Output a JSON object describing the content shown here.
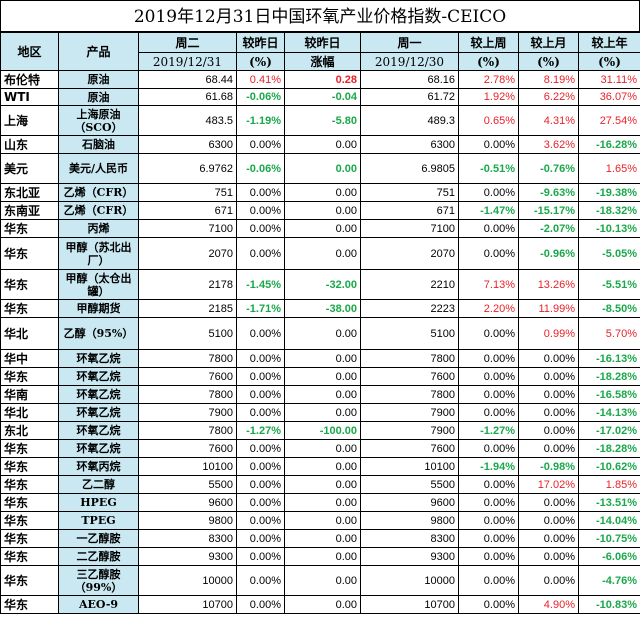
{
  "title": "2019年12月31日中国环氧产业价格指数-CEICO",
  "header": {
    "region": "地区",
    "product": "产品",
    "tue": "周二",
    "tue_date": "2019/12/31",
    "vs_prev_day": "较昨日",
    "vs_prev_day_unit": "(%)",
    "vs_prev_day2": "较昨日",
    "vs_prev_day2_sub": "涨幅",
    "mon": "周一",
    "mon_date": "2019/12/30",
    "vs_week": "较上周",
    "vs_week_unit": "(%)",
    "vs_month": "较上月",
    "vs_month_unit": "(%)",
    "vs_year": "较上年",
    "vs_year_unit": "(%)"
  },
  "rows": [
    {
      "region": "布伦特",
      "product": "原油",
      "tue": "68.44",
      "dpct": "0.41%",
      "dpct_c": "red",
      "dabs": "0.28",
      "dabs_c": "boldred",
      "mon": "68.16",
      "wk": "2.78%",
      "wk_c": "red",
      "mo": "8.19%",
      "mo_c": "red",
      "yr": "31.11%",
      "yr_c": "red",
      "h": 17
    },
    {
      "region": "WTI",
      "product": "原油",
      "tue": "61.68",
      "dpct": "-0.06%",
      "dpct_c": "green",
      "dabs": "-0.04",
      "dabs_c": "green",
      "mon": "61.72",
      "wk": "1.92%",
      "wk_c": "red",
      "mo": "6.22%",
      "mo_c": "red",
      "yr": "36.07%",
      "yr_c": "red",
      "h": 17
    },
    {
      "region": "上海",
      "product": "上海原油（SCO）",
      "tue": "483.5",
      "dpct": "-1.19%",
      "dpct_c": "green",
      "dabs": "-5.80",
      "dabs_c": "green",
      "mon": "489.3",
      "wk": "0.65%",
      "wk_c": "red",
      "mo": "4.31%",
      "mo_c": "red",
      "yr": "27.54%",
      "yr_c": "red",
      "h": 30
    },
    {
      "region": "山东",
      "product": "石脑油",
      "tue": "6300",
      "dpct": "0.00%",
      "dpct_c": "black",
      "dabs": "0.00",
      "dabs_c": "black",
      "mon": "6300",
      "wk": "0.00%",
      "wk_c": "black",
      "mo": "3.62%",
      "mo_c": "red",
      "yr": "-16.28%",
      "yr_c": "green",
      "h": 17
    },
    {
      "region": "美元",
      "product": "美元/人民币",
      "tue": "6.9762",
      "dpct": "-0.06%",
      "dpct_c": "green",
      "dabs": "0.00",
      "dabs_c": "green",
      "mon": "6.9805",
      "wk": "-0.51%",
      "wk_c": "green",
      "mo": "-0.76%",
      "mo_c": "green",
      "yr": "1.65%",
      "yr_c": "red",
      "h": 30
    },
    {
      "region": "东北亚",
      "product": "乙烯（CFR）",
      "tue": "751",
      "dpct": "0.00%",
      "dpct_c": "black",
      "dabs": "0.00",
      "dabs_c": "black",
      "mon": "751",
      "wk": "0.00%",
      "wk_c": "black",
      "mo": "-9.63%",
      "mo_c": "green",
      "yr": "-19.38%",
      "yr_c": "green",
      "h": 17
    },
    {
      "region": "东南亚",
      "product": "乙烯（CFR）",
      "tue": "671",
      "dpct": "0.00%",
      "dpct_c": "black",
      "dabs": "0.00",
      "dabs_c": "black",
      "mon": "671",
      "wk": "-1.47%",
      "wk_c": "green",
      "mo": "-15.17%",
      "mo_c": "green",
      "yr": "-18.32%",
      "yr_c": "green",
      "h": 17
    },
    {
      "region": "华东",
      "product": "丙烯",
      "tue": "7100",
      "dpct": "0.00%",
      "dpct_c": "black",
      "dabs": "0.00",
      "dabs_c": "black",
      "mon": "7100",
      "wk": "0.00%",
      "wk_c": "black",
      "mo": "-2.07%",
      "mo_c": "green",
      "yr": "-10.13%",
      "yr_c": "green",
      "h": 17
    },
    {
      "region": "华东",
      "product": "甲醇（苏北出厂）",
      "tue": "2070",
      "dpct": "0.00%",
      "dpct_c": "black",
      "dabs": "0.00",
      "dabs_c": "black",
      "mon": "2070",
      "wk": "0.00%",
      "wk_c": "black",
      "mo": "-0.96%",
      "mo_c": "green",
      "yr": "-5.05%",
      "yr_c": "green",
      "h": 32
    },
    {
      "region": "华东",
      "product": "甲醇（太仓出罐）",
      "tue": "2178",
      "dpct": "-1.45%",
      "dpct_c": "green",
      "dabs": "-32.00",
      "dabs_c": "green",
      "mon": "2210",
      "wk": "7.13%",
      "wk_c": "red",
      "mo": "13.26%",
      "mo_c": "red",
      "yr": "-5.51%",
      "yr_c": "green",
      "h": 30
    },
    {
      "region": "华东",
      "product": "甲醇期货",
      "tue": "2185",
      "dpct": "-1.71%",
      "dpct_c": "green",
      "dabs": "-38.00",
      "dabs_c": "green",
      "mon": "2223",
      "wk": "2.20%",
      "wk_c": "red",
      "mo": "11.99%",
      "mo_c": "red",
      "yr": "-8.50%",
      "yr_c": "green",
      "h": 17
    },
    {
      "region": "华北",
      "product": "乙醇（95%）",
      "tue": "5100",
      "dpct": "0.00%",
      "dpct_c": "black",
      "dabs": "0.00",
      "dabs_c": "black",
      "mon": "5100",
      "wk": "0.00%",
      "wk_c": "black",
      "mo": "0.99%",
      "mo_c": "red",
      "yr": "5.70%",
      "yr_c": "red",
      "h": 32
    },
    {
      "region": "华中",
      "product": "环氧乙烷",
      "tue": "7800",
      "dpct": "0.00%",
      "dpct_c": "black",
      "dabs": "0.00",
      "dabs_c": "black",
      "mon": "7800",
      "wk": "0.00%",
      "wk_c": "black",
      "mo": "0.00%",
      "mo_c": "black",
      "yr": "-16.13%",
      "yr_c": "green",
      "h": 17
    },
    {
      "region": "华东",
      "product": "环氧乙烷",
      "tue": "7600",
      "dpct": "0.00%",
      "dpct_c": "black",
      "dabs": "0.00",
      "dabs_c": "black",
      "mon": "7600",
      "wk": "0.00%",
      "wk_c": "black",
      "mo": "0.00%",
      "mo_c": "black",
      "yr": "-18.28%",
      "yr_c": "green",
      "h": 17
    },
    {
      "region": "华南",
      "product": "环氧乙烷",
      "tue": "7800",
      "dpct": "0.00%",
      "dpct_c": "black",
      "dabs": "0.00",
      "dabs_c": "black",
      "mon": "7800",
      "wk": "0.00%",
      "wk_c": "black",
      "mo": "0.00%",
      "mo_c": "black",
      "yr": "-16.58%",
      "yr_c": "green",
      "h": 17
    },
    {
      "region": "华北",
      "product": "环氧乙烷",
      "tue": "7900",
      "dpct": "0.00%",
      "dpct_c": "black",
      "dabs": "0.00",
      "dabs_c": "black",
      "mon": "7900",
      "wk": "0.00%",
      "wk_c": "black",
      "mo": "0.00%",
      "mo_c": "black",
      "yr": "-14.13%",
      "yr_c": "green",
      "h": 17
    },
    {
      "region": "东北",
      "product": "环氧乙烷",
      "tue": "7800",
      "dpct": "-1.27%",
      "dpct_c": "green",
      "dabs": "-100.00",
      "dabs_c": "green",
      "mon": "7900",
      "wk": "-1.27%",
      "wk_c": "green",
      "mo": "0.00%",
      "mo_c": "black",
      "yr": "-17.02%",
      "yr_c": "green",
      "h": 17
    },
    {
      "region": "华东",
      "product": "环氧乙烷",
      "tue": "7600",
      "dpct": "0.00%",
      "dpct_c": "black",
      "dabs": "0.00",
      "dabs_c": "black",
      "mon": "7600",
      "wk": "0.00%",
      "wk_c": "black",
      "mo": "0.00%",
      "mo_c": "black",
      "yr": "-18.28%",
      "yr_c": "green",
      "h": 17
    },
    {
      "region": "华东",
      "product": "环氧丙烷",
      "tue": "10100",
      "dpct": "0.00%",
      "dpct_c": "black",
      "dabs": "0.00",
      "dabs_c": "black",
      "mon": "10100",
      "wk": "-1.94%",
      "wk_c": "green",
      "mo": "-0.98%",
      "mo_c": "green",
      "yr": "-10.62%",
      "yr_c": "green",
      "h": 17
    },
    {
      "region": "华东",
      "product": "乙二醇",
      "tue": "5500",
      "dpct": "0.00%",
      "dpct_c": "black",
      "dabs": "0.00",
      "dabs_c": "black",
      "mon": "5500",
      "wk": "0.00%",
      "wk_c": "black",
      "mo": "17.02%",
      "mo_c": "red",
      "yr": "1.85%",
      "yr_c": "red",
      "h": 17
    },
    {
      "region": "华东",
      "product": "HPEG",
      "tue": "9600",
      "dpct": "0.00%",
      "dpct_c": "black",
      "dabs": "0.00",
      "dabs_c": "black",
      "mon": "9600",
      "wk": "0.00%",
      "wk_c": "black",
      "mo": "0.00%",
      "mo_c": "black",
      "yr": "-13.51%",
      "yr_c": "green",
      "h": 17
    },
    {
      "region": "华东",
      "product": "TPEG",
      "tue": "9800",
      "dpct": "0.00%",
      "dpct_c": "black",
      "dabs": "0.00",
      "dabs_c": "black",
      "mon": "9800",
      "wk": "0.00%",
      "wk_c": "black",
      "mo": "0.00%",
      "mo_c": "black",
      "yr": "-14.04%",
      "yr_c": "green",
      "h": 17
    },
    {
      "region": "华东",
      "product": "一乙醇胺",
      "tue": "8300",
      "dpct": "0.00%",
      "dpct_c": "black",
      "dabs": "0.00",
      "dabs_c": "black",
      "mon": "8300",
      "wk": "0.00%",
      "wk_c": "black",
      "mo": "0.00%",
      "mo_c": "black",
      "yr": "-10.75%",
      "yr_c": "green",
      "h": 17
    },
    {
      "region": "华东",
      "product": "二乙醇胺",
      "tue": "9300",
      "dpct": "0.00%",
      "dpct_c": "black",
      "dabs": "0.00",
      "dabs_c": "black",
      "mon": "9300",
      "wk": "0.00%",
      "wk_c": "black",
      "mo": "0.00%",
      "mo_c": "black",
      "yr": "-6.06%",
      "yr_c": "green",
      "h": 17
    },
    {
      "region": "华东",
      "product": "三乙醇胺（99%）",
      "tue": "10000",
      "dpct": "0.00%",
      "dpct_c": "black",
      "dabs": "0.00",
      "dabs_c": "black",
      "mon": "10000",
      "wk": "0.00%",
      "wk_c": "black",
      "mo": "0.00%",
      "mo_c": "black",
      "yr": "-4.76%",
      "yr_c": "green",
      "h": 30
    },
    {
      "region": "华东",
      "product": "AEO-9",
      "tue": "10700",
      "dpct": "0.00%",
      "dpct_c": "black",
      "dabs": "0.00",
      "dabs_c": "black",
      "mon": "10700",
      "wk": "0.00%",
      "wk_c": "black",
      "mo": "4.90%",
      "mo_c": "red",
      "yr": "-10.83%",
      "yr_c": "green",
      "h": 17
    }
  ]
}
